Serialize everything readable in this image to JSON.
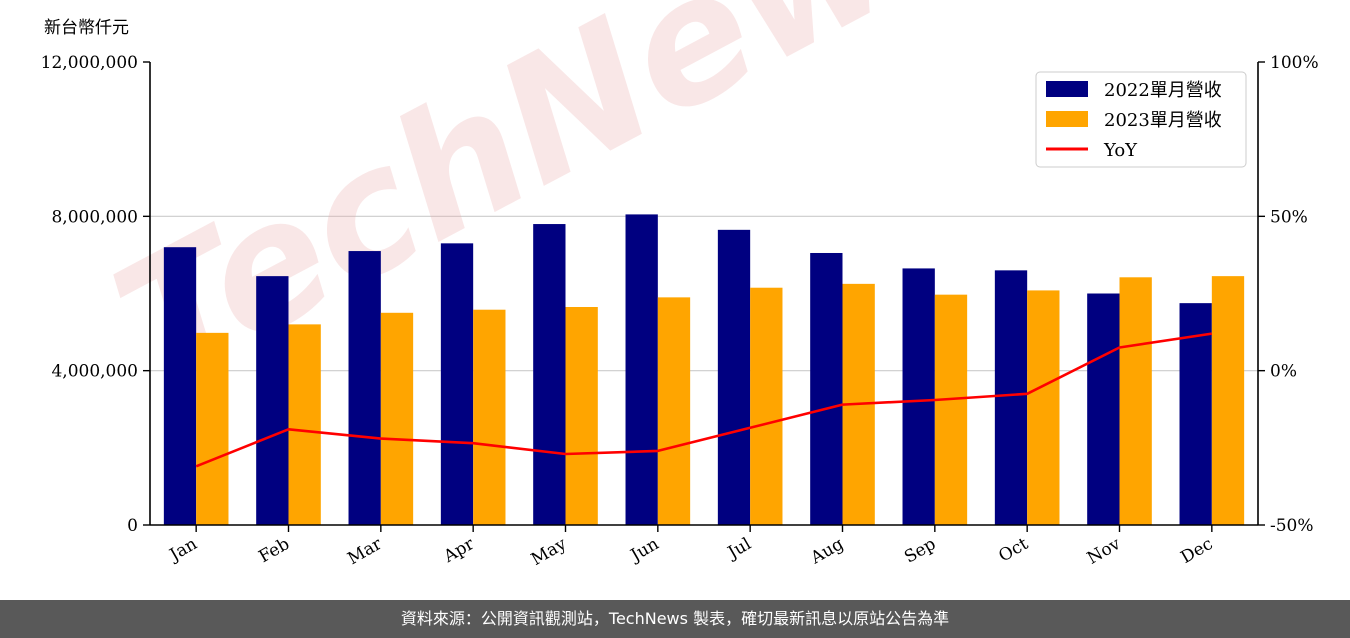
{
  "chart_data": {
    "type": "bar",
    "unit_label": "新台幣仟元",
    "categories": [
      "Jan",
      "Feb",
      "Mar",
      "Apr",
      "May",
      "Jun",
      "Jul",
      "Aug",
      "Sep",
      "Oct",
      "Nov",
      "Dec"
    ],
    "series": [
      {
        "name": "2022單月營收",
        "type": "bar",
        "color": "#000080",
        "values": [
          7200000,
          6450000,
          7100000,
          7300000,
          7800000,
          8050000,
          7650000,
          7050000,
          6650000,
          6600000,
          6000000,
          5750000
        ]
      },
      {
        "name": "2023單月營收",
        "type": "bar",
        "color": "#FFA500",
        "values": [
          4980000,
          5200000,
          5500000,
          5580000,
          5650000,
          5900000,
          6150000,
          6250000,
          5970000,
          6080000,
          6420000,
          6450000
        ]
      },
      {
        "name": "YoY",
        "type": "line",
        "axis": "right",
        "color": "#FF0000",
        "values": [
          -31,
          -19,
          -22,
          -23.5,
          -27,
          -26,
          -18.5,
          -11,
          -9.5,
          -7.5,
          7.5,
          12
        ]
      }
    ],
    "ylim_left": [
      0,
      12000000
    ],
    "yticks_left": [
      "0",
      "4,000,000",
      "8,000,000",
      "12,000,000"
    ],
    "ylim_right": [
      -50,
      100
    ],
    "yticks_right": [
      "-50%",
      "0%",
      "50%",
      "100%"
    ],
    "grid": true,
    "legend_position": "top-right"
  },
  "watermark": "TechNews",
  "footer": {
    "text": "資料來源：公開資訊觀測站，TechNews 製表，確切最新訊息以原站公告為準"
  }
}
